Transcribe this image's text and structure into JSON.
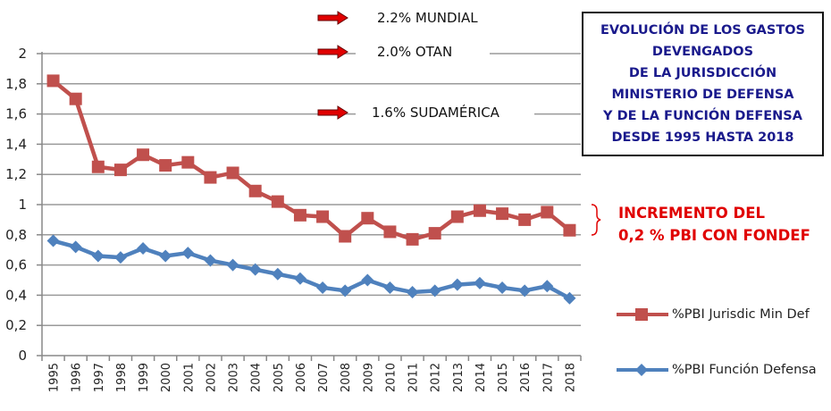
{
  "chart_data": {
    "type": "line",
    "title": "EVOLUCIÓN DE LOS GASTOS DEVENGADOS DE LA JURISDICCIÓN MINISTERIO DE DEFENSA Y DE LA FUNCIÓN DEFENSA DESDE 1995 HASTA 2018",
    "title_lines": [
      "EVOLUCIÓN DE LOS GASTOS",
      "DEVENGADOS",
      "DE LA JURISDICCIÓN",
      "MINISTERIO DE DEFENSA",
      "Y DE LA FUNCIÓN DEFENSA",
      "DESDE 1995 HASTA 2018"
    ],
    "xlabel": "",
    "ylabel": "",
    "ylim": [
      0,
      2
    ],
    "yticks": [
      "0",
      "0,2",
      "0,4",
      "0,6",
      "0,8",
      "1",
      "1,2",
      "1,4",
      "1,6",
      "1,8",
      "2"
    ],
    "grid": true,
    "legend_position": "bottom-right",
    "categories": [
      "1995",
      "1996",
      "1997",
      "1998",
      "1999",
      "2000",
      "2001",
      "2002",
      "2003",
      "2004",
      "2005",
      "2006",
      "2007",
      "2008",
      "2009",
      "2010",
      "2011",
      "2012",
      "2013",
      "2014",
      "2015",
      "2016",
      "2017",
      "2018"
    ],
    "series": [
      {
        "name": "%PBI Jurisdic Min Def",
        "color": "#C0504D",
        "marker": "square",
        "values": [
          1.82,
          1.7,
          1.25,
          1.23,
          1.33,
          1.26,
          1.28,
          1.18,
          1.21,
          1.09,
          1.02,
          0.93,
          0.92,
          0.79,
          0.91,
          0.82,
          0.77,
          0.81,
          0.92,
          0.96,
          0.94,
          0.9,
          0.95,
          0.83
        ]
      },
      {
        "name": "%PBI Función Defensa",
        "color": "#4F81BD",
        "marker": "diamond",
        "values": [
          0.76,
          0.72,
          0.66,
          0.65,
          0.71,
          0.66,
          0.68,
          0.63,
          0.6,
          0.57,
          0.54,
          0.51,
          0.45,
          0.43,
          0.5,
          0.45,
          0.42,
          0.43,
          0.47,
          0.48,
          0.45,
          0.43,
          0.46,
          0.38
        ]
      }
    ],
    "annotations": [
      {
        "text": "2.2% MUNDIAL",
        "value": 2.2,
        "icon": "red-arrow-right-icon"
      },
      {
        "text": "2.0% OTAN",
        "value": 2.0,
        "icon": "red-arrow-right-icon"
      },
      {
        "text": "1.6% SUDAMÉRICA",
        "value": 1.6,
        "icon": "red-arrow-right-icon"
      }
    ],
    "side_note": {
      "lines": [
        "INCREMENTO DEL",
        "0,2 % PBI CON FONDEF"
      ],
      "color": "#E00000",
      "icon": "brace-icon"
    }
  }
}
